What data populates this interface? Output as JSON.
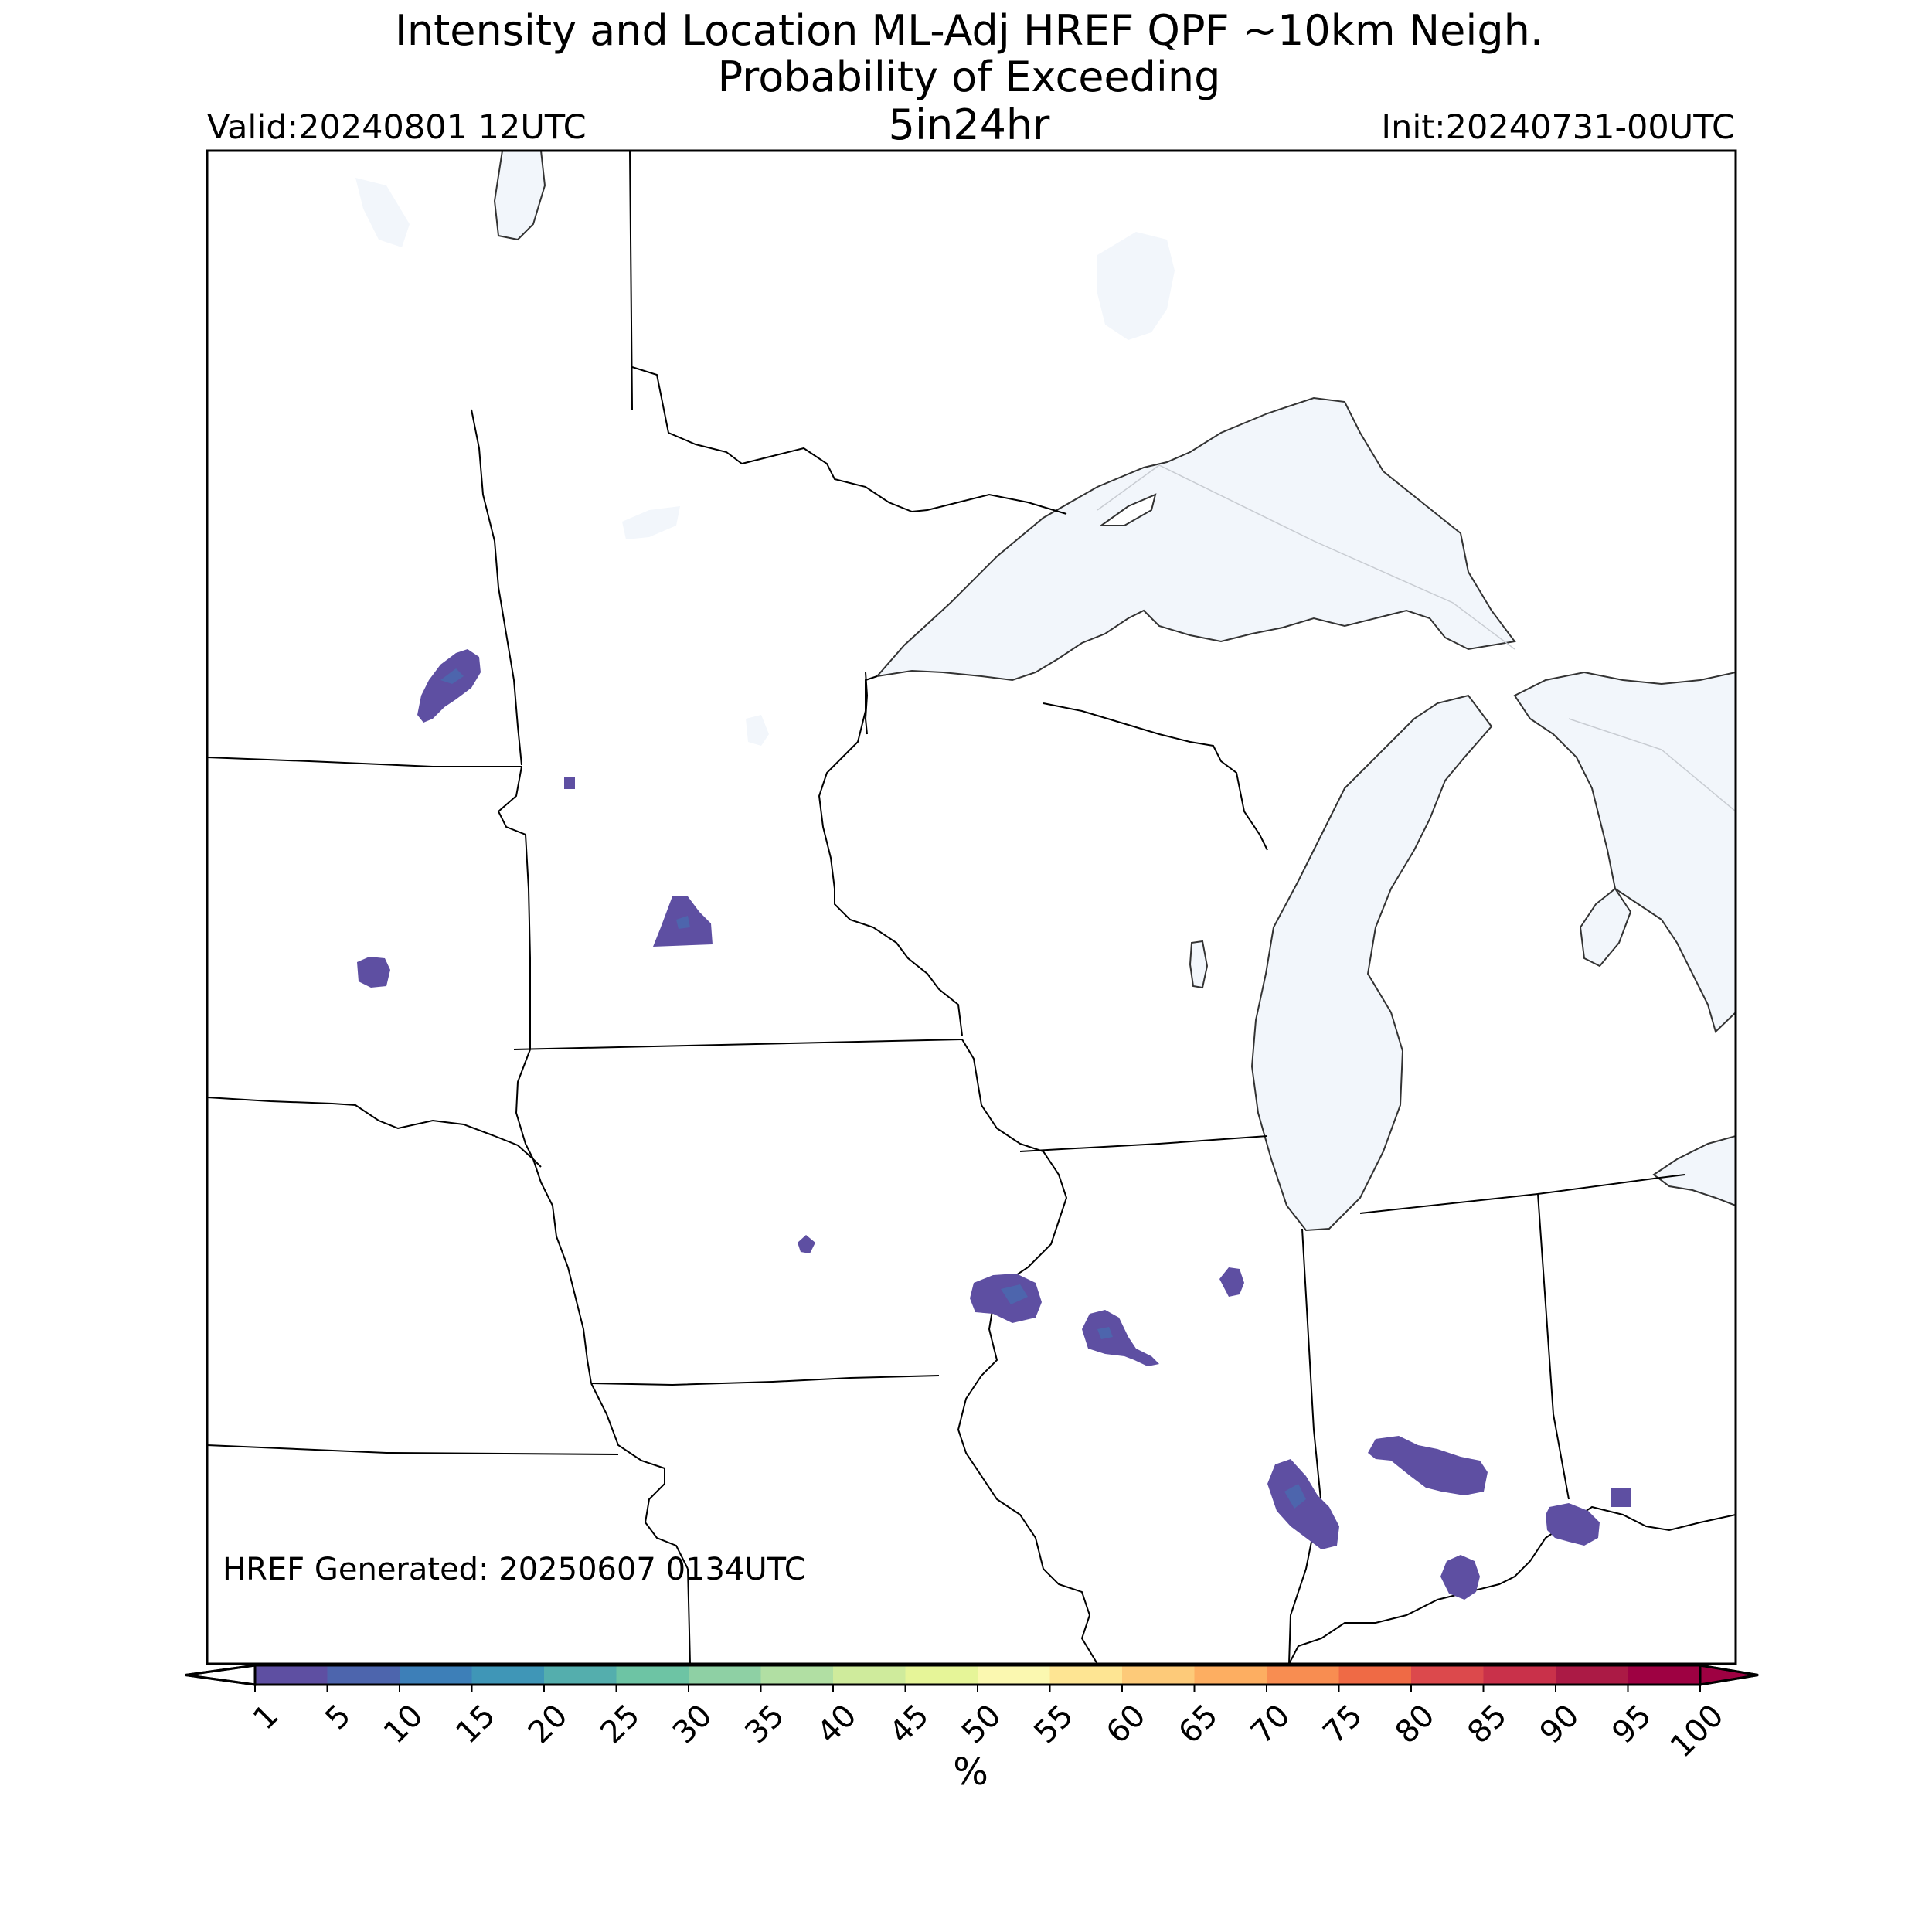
{
  "header": {
    "title_line1": "Intensity and Location ML-Adj HREF QPF ~10km Neigh.",
    "title_line2": "Probability of Exceeding",
    "title_line3": "5in24hr",
    "valid": "Valid:20240801 12UTC",
    "init": "Init:20240731-00UTC"
  },
  "footer": {
    "generated": "HREF Generated: 20250607 0134UTC"
  },
  "colorbar": {
    "unit": "%",
    "ticks": [
      "1",
      "5",
      "10",
      "15",
      "20",
      "25",
      "30",
      "35",
      "40",
      "45",
      "50",
      "55",
      "60",
      "65",
      "70",
      "75",
      "80",
      "85",
      "90",
      "95",
      "100"
    ],
    "colors": [
      "#5e4fa2",
      "#4d65ad",
      "#3d7fb8",
      "#3f96b7",
      "#54aead",
      "#6dc4a4",
      "#8ed0a4",
      "#b1dfa3",
      "#cfeb9c",
      "#e6f598",
      "#fbf8b0",
      "#fee593",
      "#fdca79",
      "#fdae61",
      "#f88d51",
      "#ef6a45",
      "#dc494c",
      "#c9314a",
      "#ab1a45",
      "#9e0142"
    ],
    "under_color": "#ffffff",
    "over_color": "#9e0142"
  },
  "map": {
    "water_color": "#f2f6fb",
    "border_color": "#000000",
    "probability_color": "#5e4fa2",
    "probability_core_color": "#4d65ad"
  }
}
